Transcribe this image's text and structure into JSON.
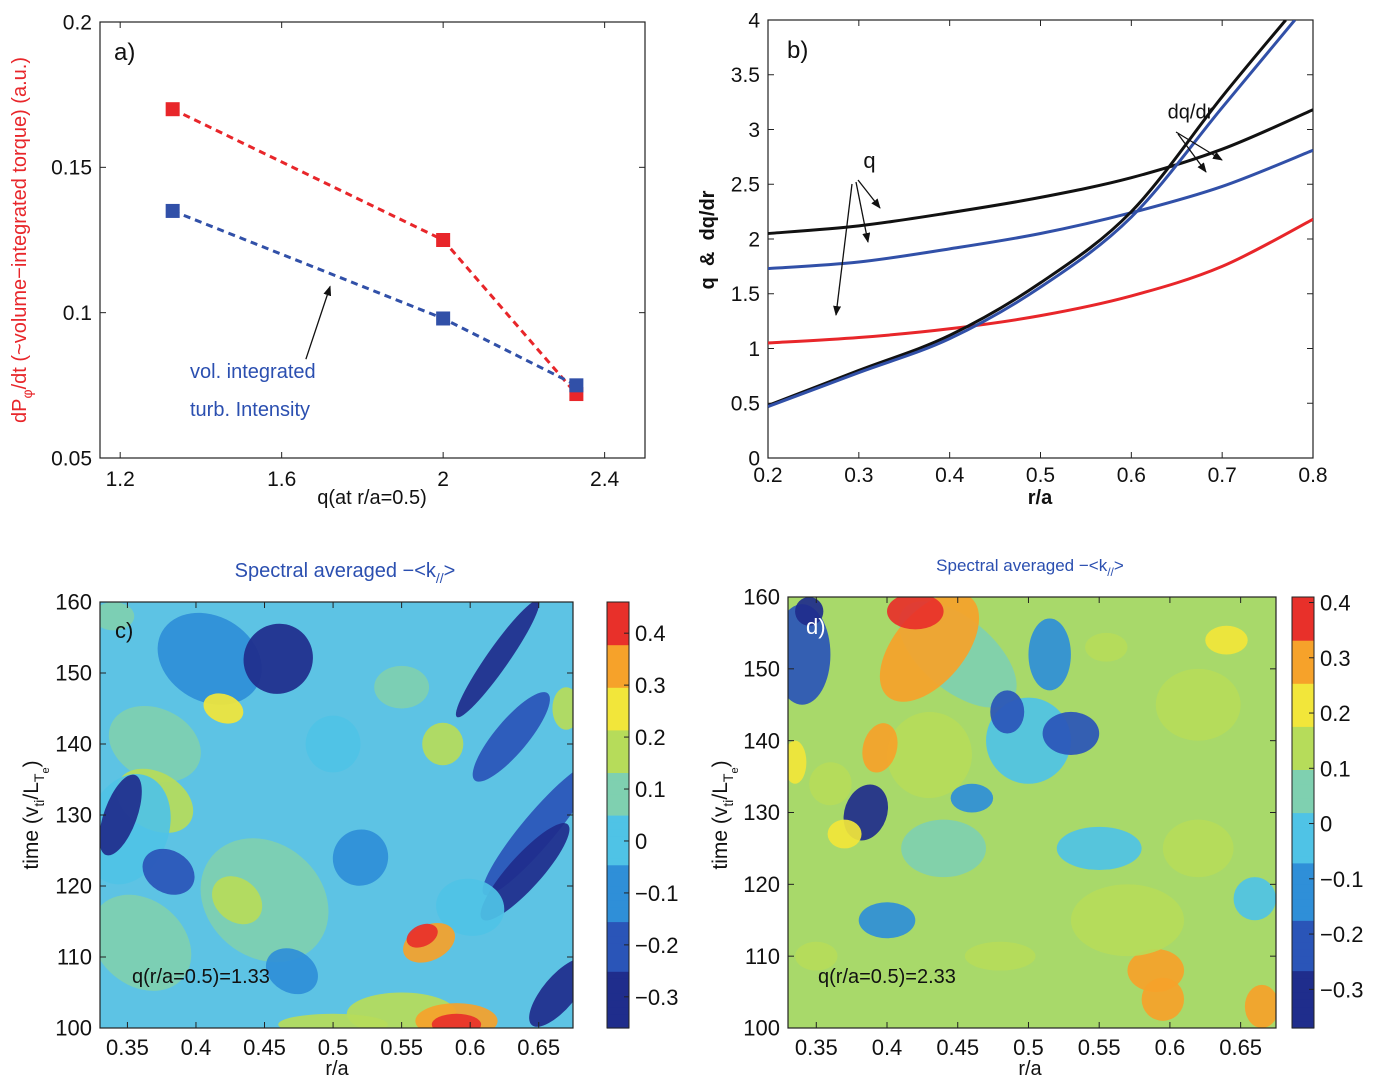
{
  "colors": {
    "red": "#e8262a",
    "blue": "#3150a8",
    "black": "#111111",
    "axis_label_red": "#e8262a",
    "annotation_blue": "#2b4fb0"
  },
  "chart_data": [
    {
      "id": "a",
      "type": "line",
      "panel_label": "a)",
      "xlabel": "q(at r/a=0.5)",
      "ylabel": "dPφ/dt (~volume−integrated torque) (a.u.)",
      "ylabel_parts": {
        "pre": "dP",
        "sub": "φ",
        "post": "/dt (~volume−integrated torque) (a.u.)"
      },
      "xlim": [
        1.15,
        2.5
      ],
      "ylim": [
        0.05,
        0.2
      ],
      "xticks": [
        1.2,
        1.6,
        2.0,
        2.4
      ],
      "xtick_labels": [
        "1.2",
        "1.6",
        "2",
        "2.4"
      ],
      "yticks": [
        0.05,
        0.1,
        0.15,
        0.2
      ],
      "ytick_labels": [
        "0.05",
        "0.1",
        "0.15",
        "0.2"
      ],
      "series": [
        {
          "color": "#e8262a",
          "x": [
            1.33,
            2.0,
            2.33
          ],
          "y": [
            0.17,
            0.125,
            0.072
          ]
        },
        {
          "color": "#3150a8",
          "x": [
            1.33,
            2.0,
            2.33
          ],
          "y": [
            0.135,
            0.098,
            0.075
          ]
        }
      ],
      "annotation": {
        "line1": "vol. integrated",
        "line2": "turb. Intensity",
        "arrow_to": [
          1.72,
          0.109
        ],
        "arrow_from": [
          1.66,
          0.084
        ]
      }
    },
    {
      "id": "b",
      "type": "line",
      "panel_label": "b)",
      "xlabel": "r/a",
      "ylabel": "q  &  dq/dr",
      "xlim": [
        0.2,
        0.8
      ],
      "ylim": [
        0,
        4
      ],
      "xticks": [
        0.2,
        0.3,
        0.4,
        0.5,
        0.6,
        0.7,
        0.8
      ],
      "xtick_labels": [
        "0.2",
        "0.3",
        "0.4",
        "0.5",
        "0.6",
        "0.7",
        "0.8"
      ],
      "yticks": [
        0,
        0.5,
        1,
        1.5,
        2,
        2.5,
        3,
        3.5,
        4
      ],
      "ytick_labels": [
        "0",
        "0.5",
        "1",
        "1.5",
        "2",
        "2.5",
        "3",
        "3.5",
        "4"
      ],
      "series": [
        {
          "kind": "q",
          "color": "#111111",
          "x": [
            0.2,
            0.3,
            0.4,
            0.5,
            0.6,
            0.7,
            0.8
          ],
          "y": [
            2.05,
            2.12,
            2.24,
            2.38,
            2.56,
            2.82,
            3.18
          ]
        },
        {
          "kind": "q",
          "color": "#3150a8",
          "x": [
            0.2,
            0.3,
            0.4,
            0.5,
            0.6,
            0.7,
            0.8
          ],
          "y": [
            1.73,
            1.79,
            1.91,
            2.05,
            2.24,
            2.48,
            2.81
          ]
        },
        {
          "kind": "q",
          "color": "#e8262a",
          "x": [
            0.2,
            0.3,
            0.4,
            0.5,
            0.6,
            0.7,
            0.8
          ],
          "y": [
            1.05,
            1.1,
            1.18,
            1.3,
            1.48,
            1.75,
            2.18
          ]
        },
        {
          "kind": "dq/dr",
          "color": "#111111",
          "x": [
            0.2,
            0.3,
            0.4,
            0.5,
            0.6,
            0.7,
            0.77
          ],
          "y": [
            0.48,
            0.8,
            1.12,
            1.6,
            2.25,
            3.3,
            4.0
          ]
        },
        {
          "kind": "dq/dr",
          "color": "#3150a8",
          "x": [
            0.2,
            0.3,
            0.4,
            0.5,
            0.6,
            0.7,
            0.78
          ],
          "y": [
            0.47,
            0.78,
            1.09,
            1.56,
            2.2,
            3.2,
            4.0
          ]
        }
      ],
      "annotations": [
        {
          "text": "q",
          "at": [
            0.305,
            2.65
          ]
        },
        {
          "text": "dq/dr",
          "at": [
            0.64,
            3.1
          ]
        }
      ]
    },
    {
      "id": "c",
      "type": "heatmap",
      "panel_label": "c)",
      "title": "Spectral averaged −<k//>",
      "title_parts": {
        "pre": "Spectral averaged −<k",
        "sub": "//",
        "post": ">"
      },
      "xlabel": "r/a",
      "ylabel": "time (vti/LTe)",
      "ylabel_parts": {
        "a": "time (v",
        "b": "ti",
        "c": "/L",
        "d": "T",
        "e": "e",
        "f": ")"
      },
      "xlim": [
        0.33,
        0.675
      ],
      "ylim": [
        100,
        160
      ],
      "xticks": [
        0.35,
        0.4,
        0.45,
        0.5,
        0.55,
        0.6,
        0.65
      ],
      "xtick_labels": [
        "0.35",
        "0.4",
        "0.45",
        "0.5",
        "0.55",
        "0.6",
        "0.65"
      ],
      "yticks": [
        100,
        110,
        120,
        130,
        140,
        150,
        160
      ],
      "ytick_labels": [
        "100",
        "110",
        "120",
        "130",
        "140",
        "150",
        "160"
      ],
      "colorbar": {
        "min": -0.36,
        "max": 0.46,
        "ticks": [
          -0.3,
          -0.2,
          -0.1,
          0,
          0.1,
          0.2,
          0.3,
          0.4
        ],
        "tick_labels": [
          "−0.3",
          "−0.2",
          "−0.1",
          "0",
          "0.1",
          "0.2",
          "0.3",
          "0.4"
        ]
      },
      "annotation": "q(r/a=0.5)=1.33"
    },
    {
      "id": "d",
      "type": "heatmap",
      "panel_label": "d)",
      "title": "Spectral averaged −<k//>",
      "title_parts": {
        "pre": "Spectral averaged −<k",
        "sub": "//",
        "post": ">"
      },
      "xlabel": "r/a",
      "ylabel": "time (vti/LTe)",
      "ylabel_parts": {
        "a": "time (v",
        "b": "ti",
        "c": "/L",
        "d": "T",
        "e": "e",
        "f": ")"
      },
      "xlim": [
        0.33,
        0.675
      ],
      "ylim": [
        100,
        160
      ],
      "xticks": [
        0.35,
        0.4,
        0.45,
        0.5,
        0.55,
        0.6,
        0.65
      ],
      "xtick_labels": [
        "0.35",
        "0.4",
        "0.45",
        "0.5",
        "0.55",
        "0.6",
        "0.65"
      ],
      "yticks": [
        100,
        110,
        120,
        130,
        140,
        150,
        160
      ],
      "ytick_labels": [
        "100",
        "110",
        "120",
        "130",
        "140",
        "150",
        "160"
      ],
      "colorbar": {
        "min": -0.37,
        "max": 0.41,
        "ticks": [
          -0.3,
          -0.2,
          -0.1,
          0,
          0.1,
          0.2,
          0.3,
          0.4
        ],
        "tick_labels": [
          "−0.3",
          "−0.2",
          "−0.1",
          "0",
          "0.1",
          "0.2",
          "0.3",
          "0.4"
        ]
      },
      "annotation": "q(r/a=0.5)=2.33"
    }
  ]
}
